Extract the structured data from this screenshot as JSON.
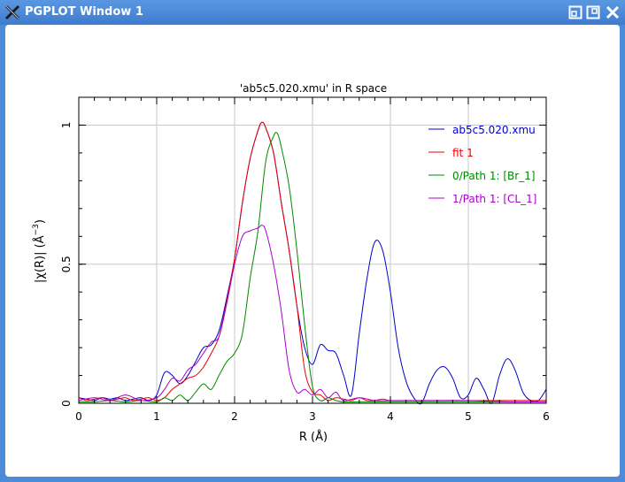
{
  "window": {
    "title": "PGPLOT Window 1",
    "icons": {
      "app": "x11-icon",
      "restore": "restore-icon",
      "maximize": "maximize-icon",
      "close": "close-icon"
    }
  },
  "chart_data": {
    "type": "line",
    "title": "'ab5c5.020.xmu' in R space",
    "xlabel": "R (Å)",
    "ylabel_main": "|χ(R)| (Å",
    "ylabel_exp": "−3",
    "ylabel_end": ")",
    "xlim": [
      0,
      6
    ],
    "ylim": [
      0,
      1.1
    ],
    "xticks": [
      0,
      1,
      2,
      3,
      4,
      5,
      6
    ],
    "xtick_labels": [
      "0",
      "1",
      "2",
      "3",
      "4",
      "5",
      "6"
    ],
    "yticks": [
      0,
      0.5,
      1
    ],
    "ytick_labels": [
      "0",
      "0.5",
      "1"
    ],
    "grid": true,
    "legend_position": "top-right",
    "series": [
      {
        "name": "ab5c5.020.xmu",
        "color": "#0000cc",
        "x": [
          0,
          0.1,
          0.2,
          0.3,
          0.4,
          0.5,
          0.6,
          0.7,
          0.8,
          0.9,
          1.0,
          1.1,
          1.2,
          1.3,
          1.4,
          1.5,
          1.6,
          1.7,
          1.8,
          1.9,
          2.0,
          2.1,
          2.2,
          2.3,
          2.35,
          2.4,
          2.5,
          2.6,
          2.7,
          2.8,
          2.9,
          3.0,
          3.1,
          3.2,
          3.3,
          3.4,
          3.5,
          3.6,
          3.7,
          3.8,
          3.9,
          4.0,
          4.1,
          4.2,
          4.3,
          4.4,
          4.5,
          4.6,
          4.7,
          4.8,
          4.9,
          5.0,
          5.1,
          5.2,
          5.3,
          5.4,
          5.5,
          5.6,
          5.7,
          5.8,
          5.9,
          6.0
        ],
        "y": [
          0.02,
          0.015,
          0.01,
          0.02,
          0.015,
          0.02,
          0.01,
          0.015,
          0.02,
          0.01,
          0.03,
          0.11,
          0.1,
          0.07,
          0.1,
          0.15,
          0.2,
          0.21,
          0.26,
          0.38,
          0.52,
          0.72,
          0.88,
          0.98,
          1.01,
          0.99,
          0.9,
          0.72,
          0.55,
          0.35,
          0.2,
          0.14,
          0.21,
          0.19,
          0.18,
          0.1,
          0.03,
          0.25,
          0.45,
          0.58,
          0.55,
          0.4,
          0.2,
          0.08,
          0.02,
          0.0,
          0.07,
          0.12,
          0.13,
          0.09,
          0.02,
          0.03,
          0.09,
          0.05,
          0.0,
          0.1,
          0.16,
          0.12,
          0.04,
          0.01,
          0.01,
          0.05
        ]
      },
      {
        "name": "fit 1",
        "color": "#ee0000",
        "x": [
          0,
          0.1,
          0.2,
          0.3,
          0.4,
          0.5,
          0.6,
          0.7,
          0.8,
          0.9,
          1.0,
          1.1,
          1.2,
          1.3,
          1.4,
          1.5,
          1.6,
          1.7,
          1.8,
          1.9,
          2.0,
          2.1,
          2.2,
          2.3,
          2.35,
          2.4,
          2.5,
          2.6,
          2.7,
          2.8,
          2.9,
          3.0,
          3.1,
          3.2,
          3.3,
          3.4,
          3.5,
          3.6,
          3.7,
          3.8,
          3.9,
          4.0,
          4.2,
          4.4,
          4.6,
          4.8,
          5.0,
          5.2,
          5.4,
          5.6,
          5.8,
          6.0
        ],
        "y": [
          0.02,
          0.01,
          0.015,
          0.02,
          0.01,
          0.015,
          0.02,
          0.01,
          0.015,
          0.02,
          0.01,
          0.02,
          0.05,
          0.07,
          0.09,
          0.1,
          0.13,
          0.18,
          0.24,
          0.37,
          0.52,
          0.72,
          0.88,
          0.98,
          1.01,
          0.99,
          0.9,
          0.72,
          0.55,
          0.35,
          0.12,
          0.04,
          0.03,
          0.01,
          0.02,
          0.015,
          0.01,
          0.02,
          0.01,
          0.01,
          0.015,
          0.01,
          0.01,
          0.01,
          0.01,
          0.01,
          0.01,
          0.01,
          0.01,
          0.01,
          0.01,
          0.01
        ]
      },
      {
        "name": "0/Path 1: [Br_1]",
        "color": "#008800",
        "x": [
          0,
          0.2,
          0.4,
          0.6,
          0.8,
          1.0,
          1.1,
          1.2,
          1.3,
          1.4,
          1.5,
          1.6,
          1.7,
          1.8,
          1.9,
          2.0,
          2.1,
          2.2,
          2.3,
          2.4,
          2.5,
          2.55,
          2.6,
          2.7,
          2.8,
          2.9,
          3.0,
          3.1,
          3.2,
          3.3,
          3.4,
          3.6,
          3.8,
          4.0,
          4.5,
          5.0,
          5.5,
          6.0
        ],
        "y": [
          0.005,
          0.005,
          0.01,
          0.005,
          0.01,
          0.005,
          0.02,
          0.01,
          0.03,
          0.01,
          0.04,
          0.07,
          0.05,
          0.1,
          0.15,
          0.18,
          0.25,
          0.45,
          0.62,
          0.87,
          0.96,
          0.97,
          0.92,
          0.78,
          0.55,
          0.28,
          0.06,
          0.01,
          0.02,
          0.01,
          0.005,
          0.005,
          0.005,
          0.005,
          0.005,
          0.005,
          0.005,
          0.005
        ]
      },
      {
        "name": "1/Path 1: [CL_1]",
        "color": "#aa00cc",
        "x": [
          0,
          0.2,
          0.4,
          0.6,
          0.8,
          1.0,
          1.1,
          1.2,
          1.3,
          1.4,
          1.5,
          1.6,
          1.7,
          1.8,
          1.9,
          2.0,
          2.1,
          2.2,
          2.3,
          2.35,
          2.4,
          2.5,
          2.6,
          2.7,
          2.8,
          2.9,
          3.0,
          3.1,
          3.2,
          3.3,
          3.4,
          3.6,
          3.8,
          4.0,
          4.5,
          5.0,
          5.5,
          6.0
        ],
        "y": [
          0.01,
          0.02,
          0.01,
          0.03,
          0.01,
          0.02,
          0.05,
          0.09,
          0.08,
          0.12,
          0.14,
          0.18,
          0.22,
          0.24,
          0.36,
          0.5,
          0.6,
          0.62,
          0.63,
          0.64,
          0.62,
          0.5,
          0.33,
          0.12,
          0.04,
          0.05,
          0.03,
          0.05,
          0.02,
          0.04,
          0.01,
          0.02,
          0.01,
          0.01,
          0.01,
          0.01,
          0.005,
          0.005
        ]
      }
    ]
  }
}
